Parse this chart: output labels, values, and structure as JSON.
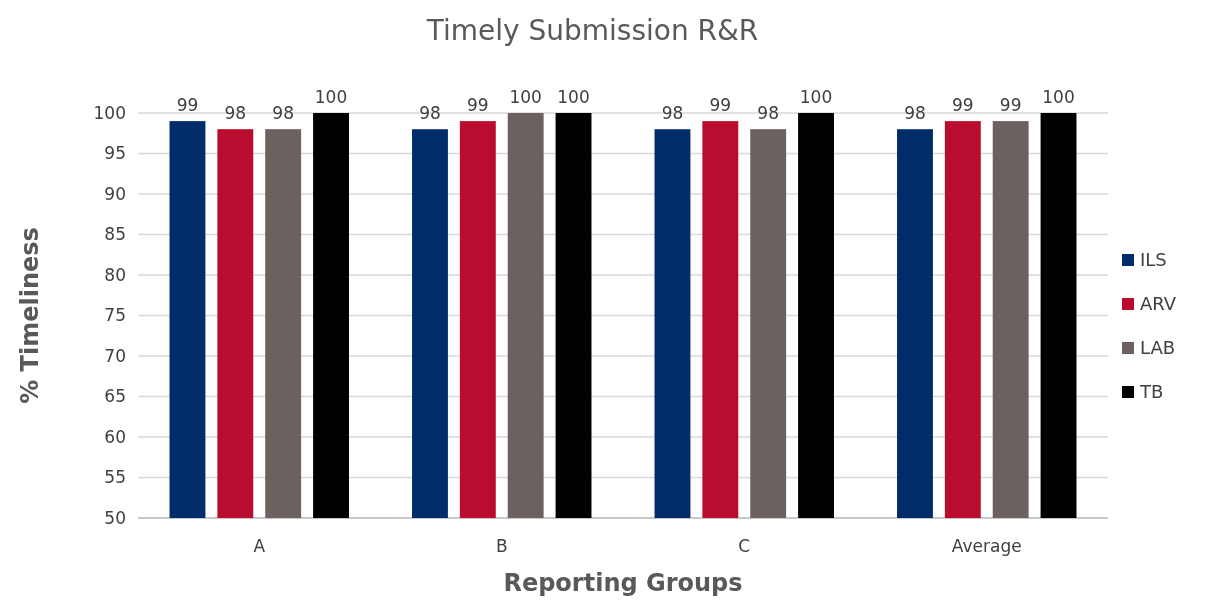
{
  "chart_data": {
    "type": "bar",
    "title": "Timely Submission R&R",
    "xlabel": "Reporting Groups",
    "ylabel": "% Timeliness",
    "categories": [
      "A",
      "B",
      "C",
      "Average"
    ],
    "series": [
      {
        "name": "ILS",
        "color": "#002d6a",
        "values": [
          99,
          98,
          98,
          98
        ]
      },
      {
        "name": "ARV",
        "color": "#ba0c2f",
        "values": [
          98,
          99,
          99,
          99
        ]
      },
      {
        "name": "LAB",
        "color": "#6b625f",
        "values": [
          98,
          100,
          98,
          99
        ]
      },
      {
        "name": "TB",
        "color": "#000000",
        "values": [
          100,
          100,
          100,
          100
        ]
      }
    ],
    "ylim": [
      50,
      100
    ],
    "yticks": [
      50,
      55,
      60,
      65,
      70,
      75,
      80,
      85,
      90,
      95,
      100
    ],
    "grid": "y",
    "legend": "right",
    "data_labels": true
  }
}
